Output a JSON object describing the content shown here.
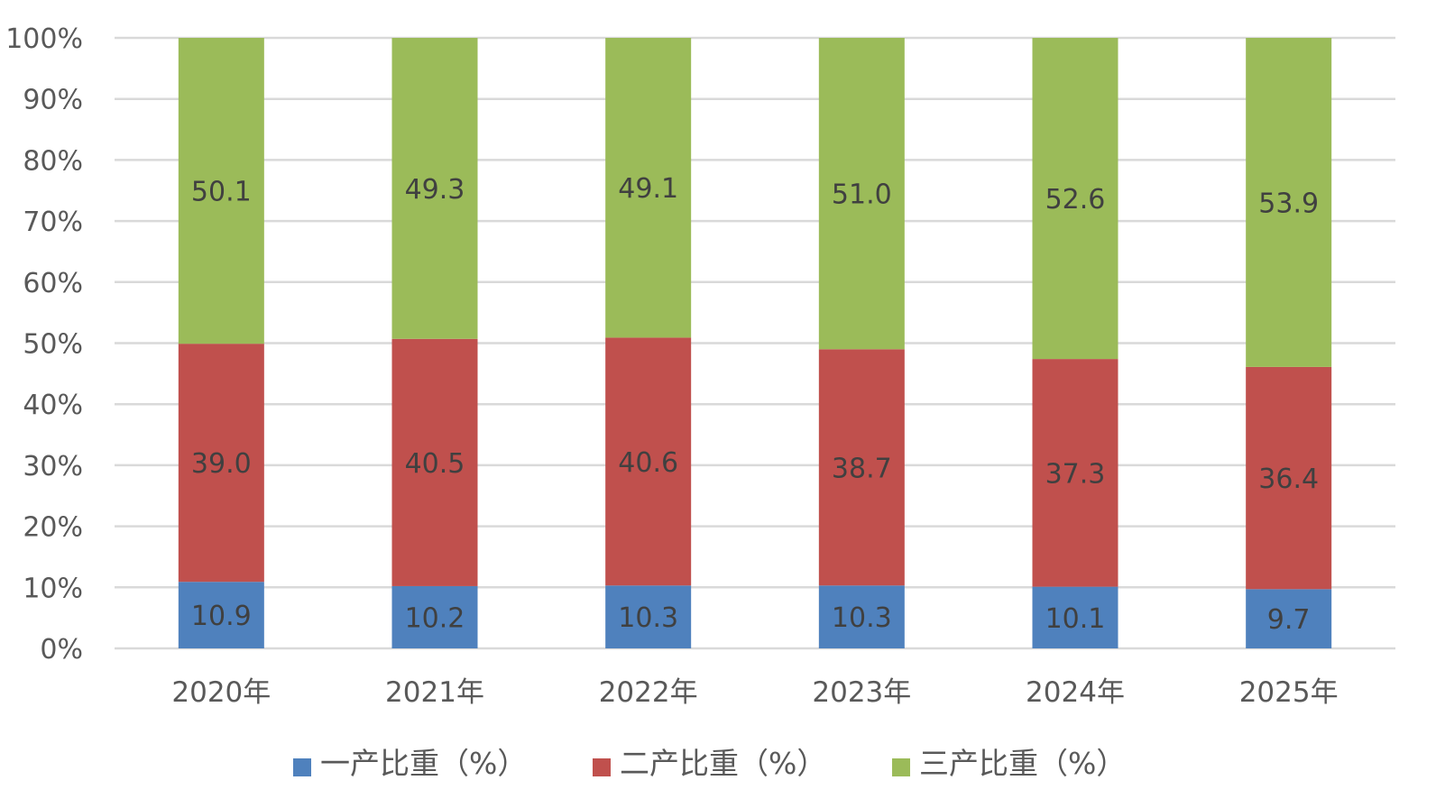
{
  "chart_data": {
    "type": "bar",
    "stacked": true,
    "categories": [
      "2020年",
      "2021年",
      "2022年",
      "2023年",
      "2024年",
      "2025年"
    ],
    "series": [
      {
        "name": "一产比重（%）",
        "color": "#4f81bd",
        "values": [
          10.9,
          10.2,
          10.3,
          10.3,
          10.1,
          9.7
        ]
      },
      {
        "name": "二产比重（%）",
        "color": "#c0504d",
        "values": [
          39.0,
          40.5,
          40.6,
          38.7,
          37.3,
          36.4
        ]
      },
      {
        "name": "三产比重（%）",
        "color": "#9bbb59",
        "values": [
          50.1,
          49.3,
          49.1,
          51.0,
          52.6,
          53.9
        ]
      }
    ],
    "ylim": [
      0,
      100
    ],
    "yticks": [
      "0%",
      "10%",
      "20%",
      "30%",
      "40%",
      "50%",
      "60%",
      "70%",
      "80%",
      "90%",
      "100%"
    ],
    "grid": true,
    "legend_position": "bottom",
    "title": "",
    "xlabel": "",
    "ylabel": ""
  }
}
